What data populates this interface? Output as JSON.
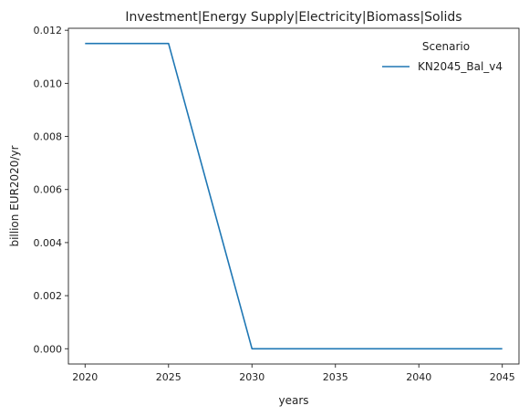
{
  "chart_data": {
    "type": "line",
    "title": "Investment|Energy Supply|Electricity|Biomass|Solids",
    "xlabel": "years",
    "ylabel": "billion EUR2020/yr",
    "x": [
      2020,
      2025,
      2030,
      2035,
      2040,
      2045
    ],
    "series": [
      {
        "name": "KN2045_Bal_v4",
        "color": "#1f77b4",
        "values": [
          0.0115,
          0.0115,
          0.0,
          0.0,
          0.0,
          0.0
        ]
      }
    ],
    "xlim": [
      2019,
      2046
    ],
    "ylim": [
      -0.000575,
      0.012075
    ],
    "xticks": [
      "2020",
      "2025",
      "2030",
      "2035",
      "2040",
      "2045"
    ],
    "yticks": [
      "0.000",
      "0.002",
      "0.004",
      "0.006",
      "0.008",
      "0.010",
      "0.012"
    ],
    "legend": {
      "title": "Scenario",
      "placement": "top-right"
    },
    "grid": false
  }
}
